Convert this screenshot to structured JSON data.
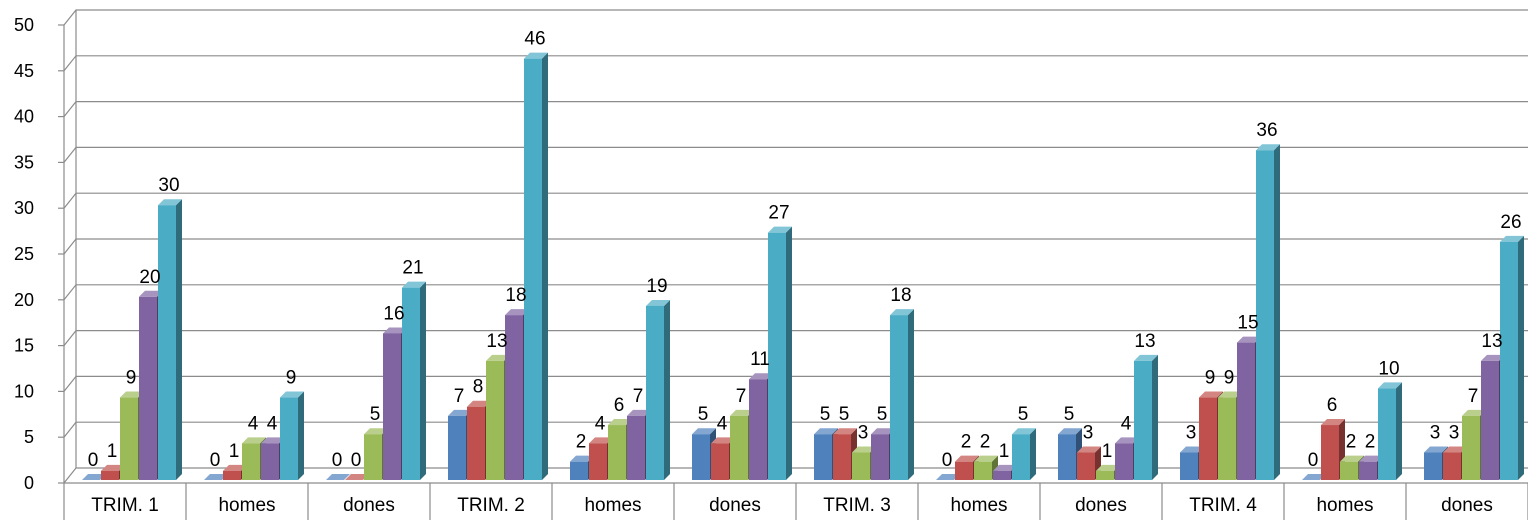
{
  "chart_data": {
    "type": "bar",
    "style": "3d-clustered-column",
    "title": "",
    "xlabel": "",
    "ylabel": "",
    "ylim": [
      0,
      50
    ],
    "yticks": [
      0,
      5,
      10,
      15,
      20,
      25,
      30,
      35,
      40,
      45,
      50
    ],
    "grid": true,
    "legend": "none",
    "categories": [
      "TRIM. 1",
      "homes",
      "dones",
      "TRIM. 2",
      "homes",
      "dones",
      "TRIM. 3",
      "homes",
      "dones",
      "TRIM. 4",
      "homes",
      "dones"
    ],
    "series": [
      {
        "color": "#4F81BD",
        "values": [
          0,
          0,
          0,
          7,
          2,
          5,
          5,
          0,
          5,
          3,
          0,
          3
        ]
      },
      {
        "color": "#C0504D",
        "values": [
          1,
          1,
          0,
          8,
          4,
          4,
          5,
          2,
          3,
          9,
          6,
          3
        ]
      },
      {
        "color": "#9BBB59",
        "values": [
          9,
          4,
          5,
          13,
          6,
          7,
          3,
          2,
          1,
          9,
          2,
          7
        ]
      },
      {
        "color": "#8064A2",
        "values": [
          20,
          4,
          16,
          18,
          7,
          11,
          5,
          1,
          4,
          15,
          2,
          13
        ]
      },
      {
        "color": "#4BACC6",
        "values": [
          30,
          9,
          21,
          46,
          19,
          27,
          18,
          5,
          13,
          36,
          10,
          26
        ]
      }
    ]
  }
}
